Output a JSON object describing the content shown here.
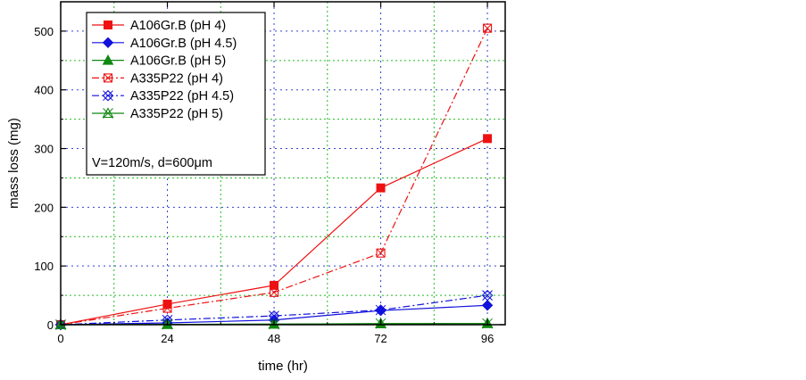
{
  "chart_data": {
    "type": "line",
    "title": "",
    "xlabel": "time (hr)",
    "ylabel": "mass loss (mg)",
    "xlim": [
      0,
      100
    ],
    "ylim": [
      0,
      550
    ],
    "xticks": [
      0,
      24,
      48,
      72,
      96
    ],
    "xtick_labels": [
      "0",
      "24",
      "48",
      "72",
      "96"
    ],
    "yticks": [
      0,
      100,
      200,
      300,
      400,
      500
    ],
    "ytick_labels": [
      "0",
      "100",
      "200",
      "300",
      "400",
      "500"
    ],
    "grid": {
      "major": "blue dotted",
      "minor": "green dotted"
    },
    "legend_position": "top-left",
    "annotation": "V=120m/s, d=600μm",
    "series": [
      {
        "name": "A106Gr.B (pH 4)",
        "x": [
          0,
          24,
          48,
          72,
          96
        ],
        "values": [
          0,
          35,
          67,
          233,
          317
        ],
        "color": "#ee1111",
        "marker": "filled-square",
        "line": "solid"
      },
      {
        "name": "A106Gr.B (pH 4.5)",
        "x": [
          0,
          24,
          48,
          72,
          96
        ],
        "values": [
          0,
          3,
          8,
          24,
          33
        ],
        "color": "#1111dd",
        "marker": "filled-diamond",
        "line": "solid"
      },
      {
        "name": "A106Gr.B (pH 5)",
        "x": [
          0,
          24,
          48,
          72,
          96
        ],
        "values": [
          0,
          0.5,
          1,
          1.5,
          2
        ],
        "color": "#118811",
        "marker": "filled-triangle",
        "line": "solid"
      },
      {
        "name": "A335P22 (pH 4)",
        "x": [
          0,
          24,
          48,
          72,
          96
        ],
        "values": [
          0,
          28,
          55,
          122,
          505
        ],
        "color": "#ee1111",
        "marker": "crossed-square",
        "line": "dash-dot"
      },
      {
        "name": "A335P22 (pH 4.5)",
        "x": [
          0,
          24,
          48,
          72,
          96
        ],
        "values": [
          0,
          8,
          15,
          25,
          50
        ],
        "color": "#1111dd",
        "marker": "crossed-diamond",
        "line": "dash-dot"
      },
      {
        "name": "A335P22 (pH 5)",
        "x": [
          0,
          24,
          48,
          72,
          96
        ],
        "values": [
          0,
          0.5,
          1,
          2,
          2
        ],
        "color": "#118811",
        "marker": "crossed-triangle",
        "line": "solid"
      }
    ]
  }
}
